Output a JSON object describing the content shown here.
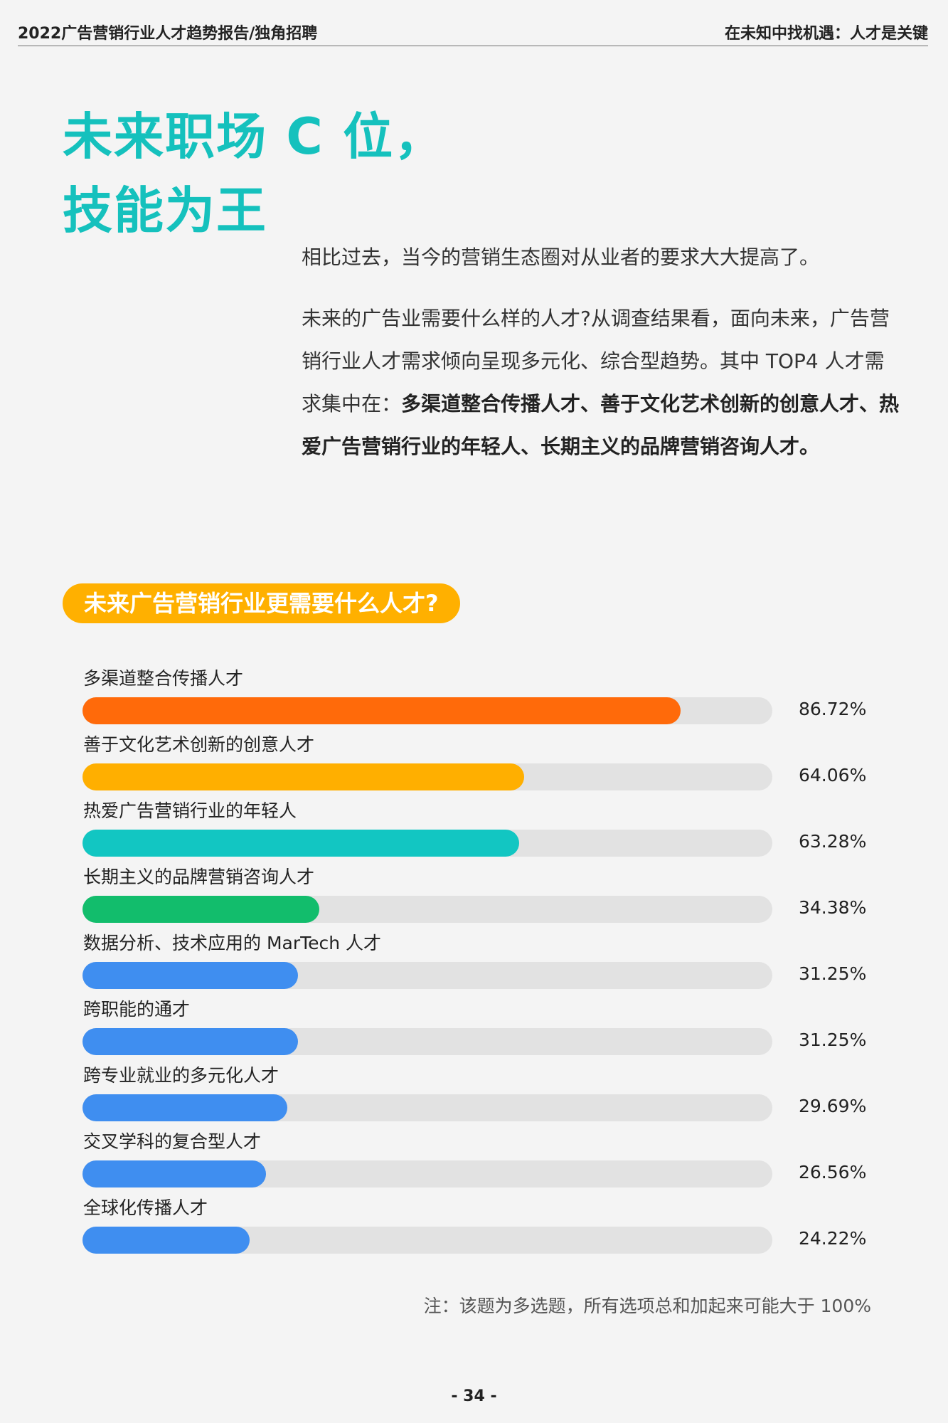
{
  "header": {
    "left": "2022广告营销行业人才趋势报告/独角招聘",
    "right": "在未知中找机遇：人才是关键"
  },
  "title": {
    "line1": "未来职场 C 位，",
    "line2": "技能为王"
  },
  "intro": {
    "p1": "相比过去，当今的营销生态圈对从业者的要求大大提高了。",
    "p2_normal": "未来的广告业需要什么样的人才?从调查结果看，面向未来，广告营销行业人才需求倾向呈现多元化、综合型趋势。其中 TOP4 人才需求集中在：",
    "p2_bold": "多渠道整合传播人才、善于文化艺术创新的创意人才、热爱广告营销行业的年轻人、长期主义的品牌营销咨询人才。"
  },
  "section_title": "未来广告营销行业更需要什么人才?",
  "chart_data": {
    "type": "bar",
    "orientation": "horizontal",
    "categories": [
      "多渠道整合传播人才",
      "善于文化艺术创新的创意人才",
      "热爱广告营销行业的年轻人",
      "长期主义的品牌营销咨询人才",
      "数据分析、技术应用的 MarTech 人才",
      "跨职能的通才",
      "跨专业就业的多元化人才",
      "交叉学科的复合型人才",
      "全球化传播人才"
    ],
    "values": [
      86.72,
      64.06,
      63.28,
      34.38,
      31.25,
      31.25,
      29.69,
      26.56,
      24.22
    ],
    "value_labels": [
      "86.72%",
      "64.06%",
      "63.28%",
      "34.38%",
      "31.25%",
      "31.25%",
      "29.69%",
      "26.56%",
      "24.22%"
    ],
    "colors": [
      "#ff6a0a",
      "#ffaf00",
      "#12c6c2",
      "#12bd6c",
      "#3f8ef0",
      "#3f8ef0",
      "#3f8ef0",
      "#3f8ef0",
      "#3f8ef0"
    ],
    "track_color": "#e2e2e2",
    "xlim": [
      0,
      100
    ],
    "title": "",
    "xlabel": "",
    "ylabel": "",
    "grid": false
  },
  "note": "注：该题为多选题，所有选项总和加起来可能大于 100%",
  "page_number": "- 34 -"
}
